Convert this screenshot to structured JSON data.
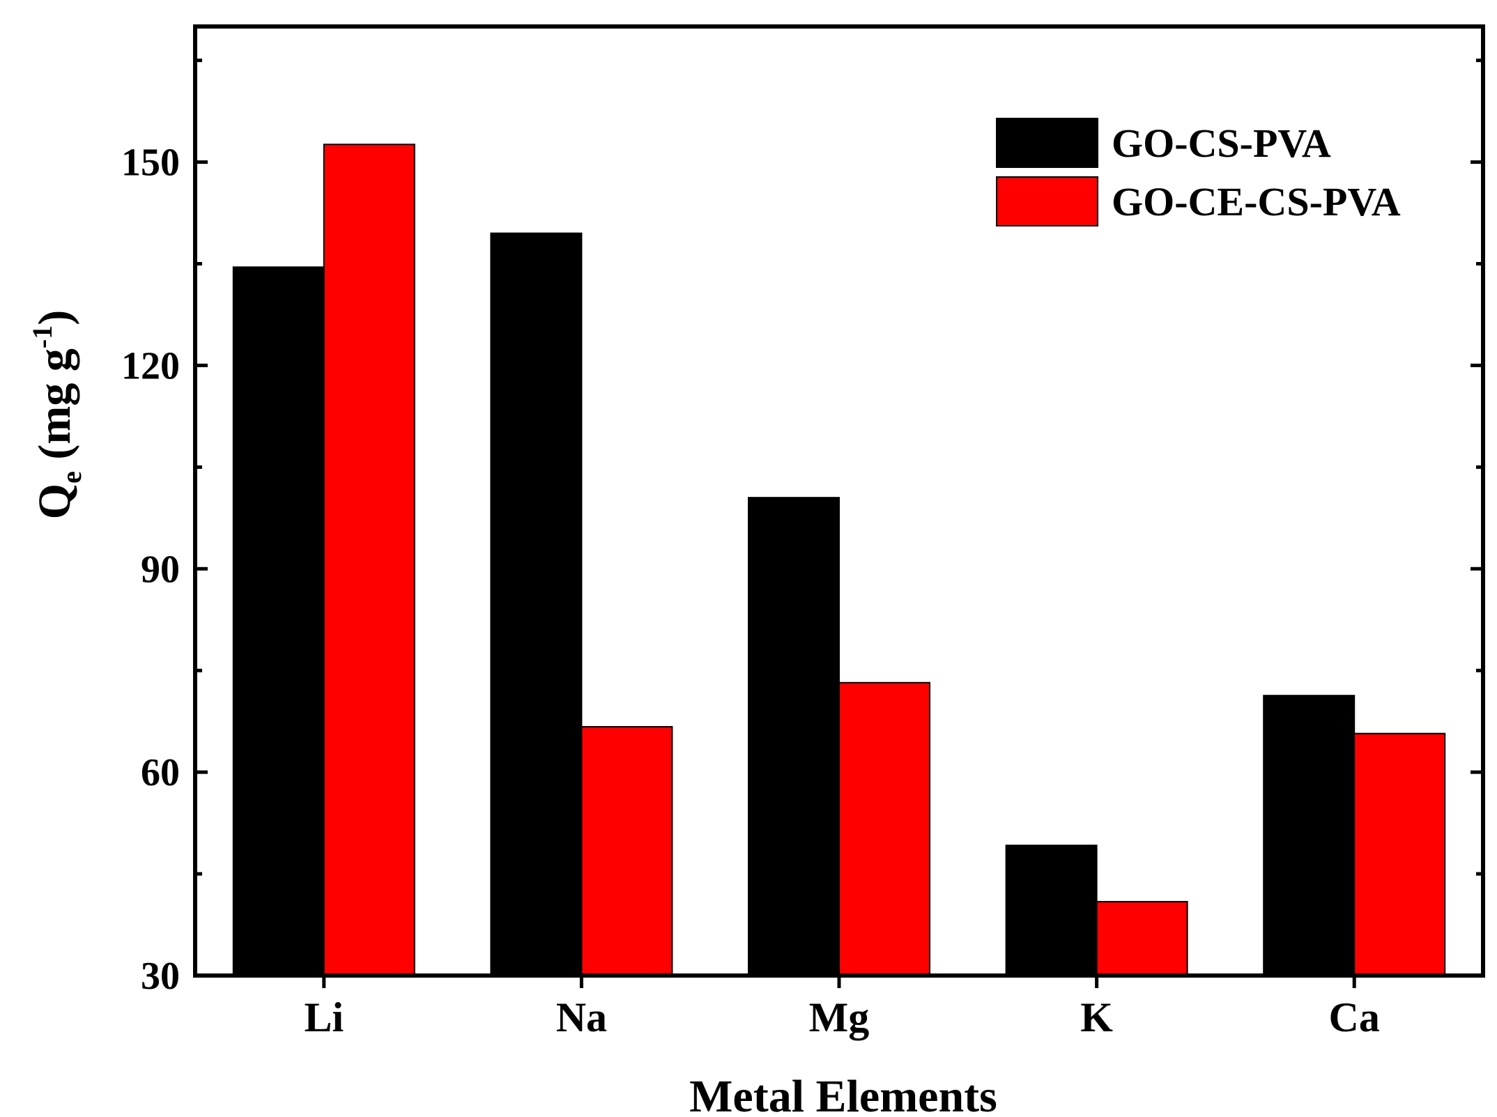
{
  "chart_data": {
    "type": "bar",
    "categories": [
      "Li",
      "Na",
      "Mg",
      "K",
      "Ca"
    ],
    "series": [
      {
        "name": "GO-CS-PVA",
        "color": "#000000",
        "values": [
          134.5,
          139.5,
          100.5,
          49.2,
          71.3
        ]
      },
      {
        "name": "GO-CE-CS-PVA",
        "color": "#ff0000",
        "values": [
          152.6,
          66.7,
          73.2,
          40.9,
          65.7
        ]
      }
    ],
    "xlabel": "Metal Elements",
    "ylabel": {
      "main": "Q",
      "subscript": "e",
      "units_open": " (mg g",
      "units_superscript": "-1",
      "units_close": ")"
    },
    "ylim": [
      30,
      170
    ],
    "yticks": [
      30,
      60,
      90,
      120,
      150
    ],
    "y_minor_ticks": [
      45,
      75,
      105,
      135,
      165
    ],
    "grid": false,
    "legend_position": "top-right"
  }
}
